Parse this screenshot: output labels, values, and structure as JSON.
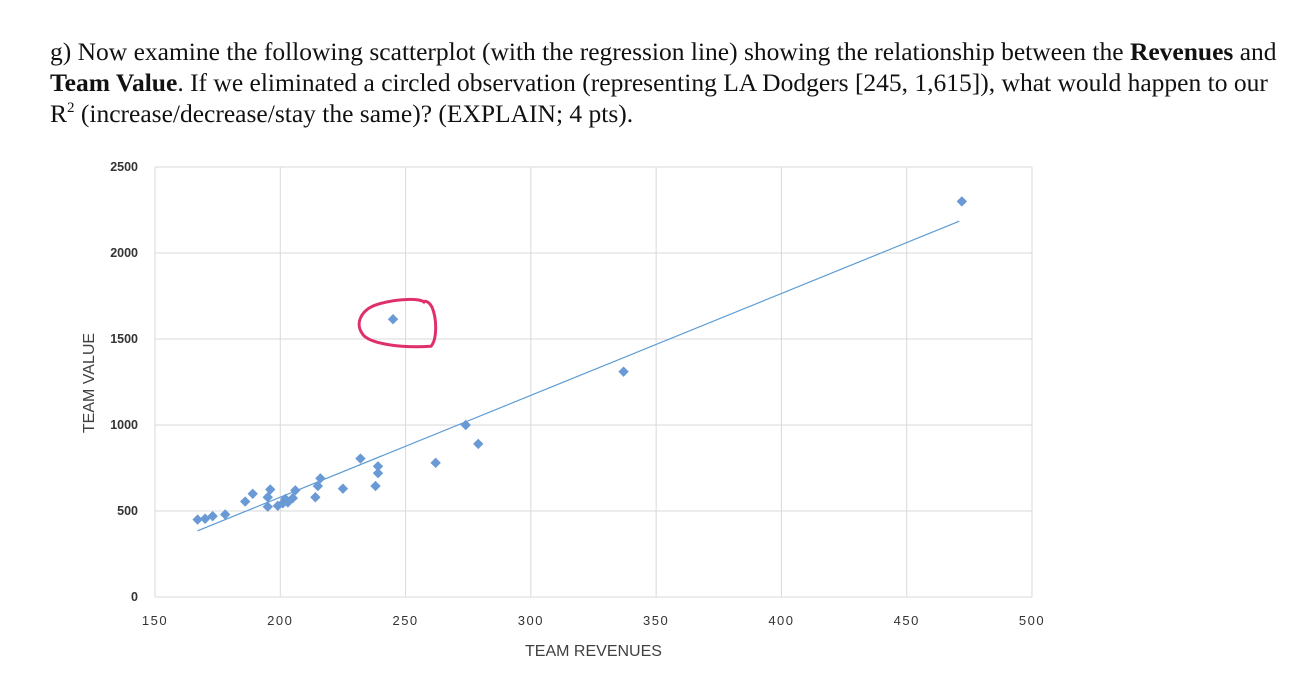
{
  "question": {
    "prefix": "g) Now examine the following scatterplot (with the regression line) showing the relationship between the ",
    "bold1": "Revenues",
    "and": " and ",
    "bold2": "Team Value",
    "middle": ". If we eliminated a circled observation (representing LA Dodgers [245, 1,615]), what would happen to our R",
    "sup": "2",
    "suffix": " (increase/decrease/stay the same)? (EXPLAIN; 4 pts)."
  },
  "chart_data": {
    "type": "scatter",
    "xlabel": "TEAM REVENUES",
    "ylabel": "TEAM VALUE",
    "xlim": [
      150,
      500
    ],
    "ylim": [
      0,
      2500
    ],
    "x_ticks": [
      "150",
      "200",
      "250",
      "300",
      "350",
      "400",
      "450",
      "500"
    ],
    "y_ticks": [
      "0",
      "500",
      "1000",
      "1500",
      "2000",
      "2500"
    ],
    "grid": true,
    "marker_color": "#6a9ad6",
    "line_color": "#5b9bd5",
    "circle_color": "#e0306a",
    "points": [
      [
        167,
        450
      ],
      [
        170,
        455
      ],
      [
        173,
        470
      ],
      [
        178,
        480
      ],
      [
        186,
        555
      ],
      [
        189,
        600
      ],
      [
        195,
        525
      ],
      [
        195,
        580
      ],
      [
        196,
        625
      ],
      [
        199,
        530
      ],
      [
        201,
        545
      ],
      [
        202,
        570
      ],
      [
        203,
        550
      ],
      [
        205,
        575
      ],
      [
        206,
        620
      ],
      [
        214,
        580
      ],
      [
        215,
        645
      ],
      [
        216,
        690
      ],
      [
        225,
        630
      ],
      [
        232,
        805
      ],
      [
        238,
        645
      ],
      [
        239,
        720
      ],
      [
        239,
        760
      ],
      [
        245,
        1615
      ],
      [
        262,
        780
      ],
      [
        274,
        1000
      ],
      [
        279,
        890
      ],
      [
        337,
        1310
      ],
      [
        472,
        2300
      ]
    ],
    "regression_line": {
      "x": [
        167,
        471
      ],
      "y": [
        385,
        2185
      ]
    },
    "circled_point": [
      245,
      1615
    ]
  }
}
